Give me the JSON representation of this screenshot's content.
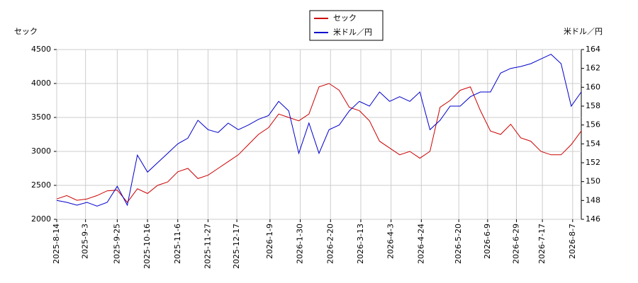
{
  "chart_data": {
    "type": "line",
    "ylabel": "セック",
    "y2label": "米ドル／円",
    "x": [
      "2025-8-14",
      "2025-8-21",
      "2025-8-28",
      "2025-9-4",
      "2025-9-11",
      "2025-9-18",
      "2025-9-25",
      "2025-10-2",
      "2025-10-9",
      "2025-10-16",
      "2025-10-23",
      "2025-10-30",
      "2025-11-6",
      "2025-11-13",
      "2025-11-20",
      "2025-11-27",
      "2025-12-4",
      "2025-12-11",
      "2025-12-18",
      "2025-12-25",
      "2026-1-1",
      "2026-1-8",
      "2026-1-15",
      "2026-1-22",
      "2026-1-29",
      "2026-2-5",
      "2026-2-12",
      "2026-2-19",
      "2026-2-26",
      "2026-3-5",
      "2026-3-12",
      "2026-3-19",
      "2026-3-26",
      "2026-4-2",
      "2026-4-9",
      "2026-4-16",
      "2026-4-23",
      "2026-4-30",
      "2026-5-7",
      "2026-5-14",
      "2026-5-21",
      "2026-5-28",
      "2026-6-4",
      "2026-6-11",
      "2026-6-18",
      "2026-6-25",
      "2026-7-2",
      "2026-7-9",
      "2026-7-16",
      "2026-7-23",
      "2026-7-30",
      "2026-8-6",
      "2026-8-13"
    ],
    "series": [
      {
        "name": "セック",
        "color": "#cc0000",
        "axis": "y",
        "values": [
          2300,
          2350,
          2280,
          2300,
          2350,
          2420,
          2430,
          2250,
          2450,
          2380,
          2500,
          2550,
          2700,
          2750,
          2600,
          2650,
          2750,
          2850,
          2950,
          3100,
          3250,
          3350,
          3550,
          3500,
          3450,
          3550,
          3950,
          4000,
          3900,
          3650,
          3600,
          3450,
          3150,
          3050,
          2950,
          3000,
          2900,
          3000,
          3650,
          3750,
          3900,
          3950,
          3600,
          3300,
          3250,
          3400,
          3200,
          3150,
          3000,
          2950,
          2950,
          3100,
          3300
        ]
      },
      {
        "name": "米ドル／円",
        "color": "#0000cc",
        "axis": "y2",
        "values": [
          148.0,
          147.8,
          147.5,
          147.8,
          147.4,
          147.8,
          149.5,
          147.5,
          152.8,
          151.0,
          152.0,
          153.0,
          154.0,
          154.6,
          156.5,
          155.5,
          155.2,
          156.2,
          155.5,
          156.0,
          156.6,
          157.0,
          158.5,
          157.5,
          153.0,
          156.2,
          153.0,
          155.5,
          156.0,
          157.5,
          158.5,
          158.0,
          159.5,
          158.5,
          159.0,
          158.5,
          159.5,
          155.5,
          156.5,
          158.0,
          158.0,
          159.0,
          159.5,
          159.5,
          161.5,
          162.0,
          162.2,
          162.5,
          163.0,
          163.5,
          162.5,
          158.0,
          159.5
        ]
      }
    ],
    "xlim": [
      "2025-8-14",
      "2026-8-13"
    ],
    "xticks": [
      "2025-8-14",
      "2025-9-3",
      "2025-9-25",
      "2025-10-16",
      "2025-11-6",
      "2025-11-27",
      "2025-12-17",
      "2026-1-9",
      "2026-1-30",
      "2026-2-20",
      "2026-3-13",
      "2026-4-3",
      "2026-4-24",
      "2026-5-20",
      "2026-6-9",
      "2026-6-29",
      "2026-7-17",
      "2026-8-7"
    ],
    "ylim": [
      2000,
      4500
    ],
    "yticks": [
      2000,
      2500,
      3000,
      3500,
      4000,
      4500
    ],
    "y2lim": [
      146,
      164
    ],
    "y2ticks": [
      146,
      148,
      150,
      152,
      154,
      156,
      158,
      160,
      162,
      164
    ],
    "grid": true
  }
}
